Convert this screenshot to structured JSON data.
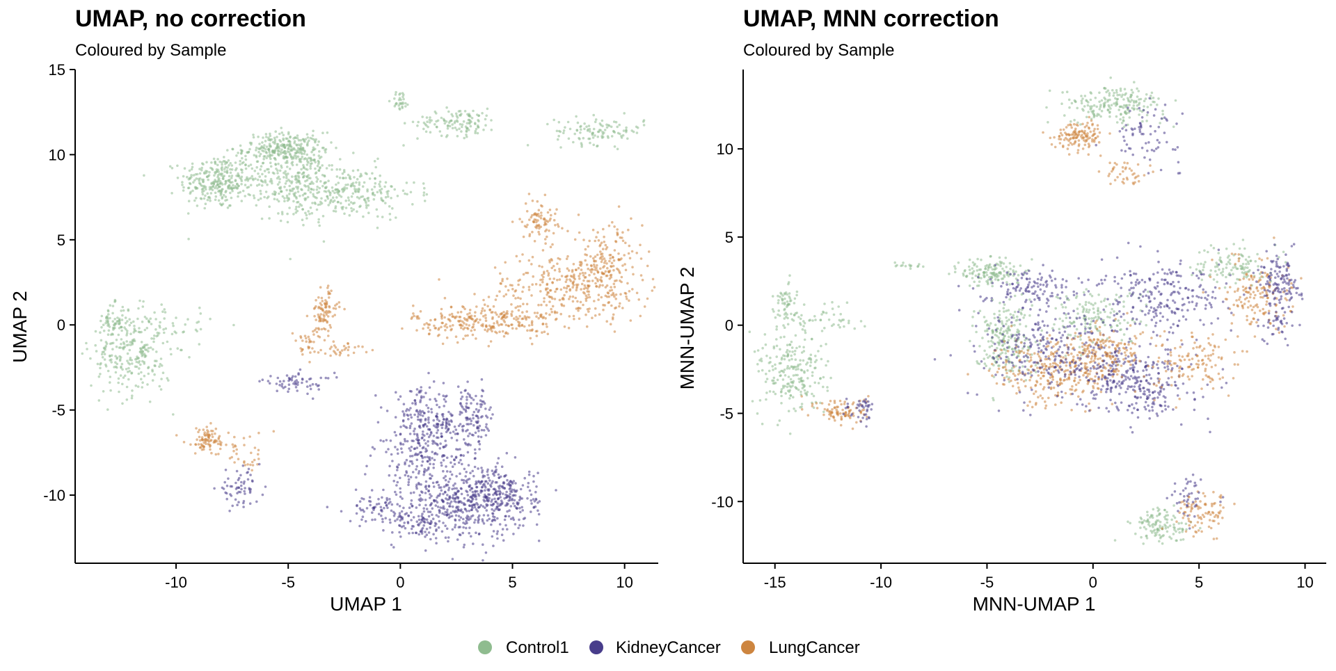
{
  "colors": {
    "Control1": "#8fbc8f",
    "KidneyCancer": "#483d8b",
    "LungCancer": "#cd853f"
  },
  "legend": {
    "placement": "bottom",
    "items": [
      "Control1",
      "KidneyCancer",
      "LungCancer"
    ]
  },
  "chart_data": [
    {
      "type": "scatter",
      "title": "UMAP, no correction",
      "subtitle": "Coloured by Sample",
      "xlabel": "UMAP 1",
      "ylabel": "UMAP 2",
      "xlim": [
        -14.5,
        11.5
      ],
      "ylim": [
        -14,
        15
      ],
      "xticks": [
        -10,
        -5,
        0,
        5,
        10
      ],
      "yticks": [
        15,
        10,
        5,
        0,
        -5,
        -10
      ],
      "grid": false,
      "clusters": [
        {
          "sample": "Control1",
          "cx": -8.2,
          "cy": 8.4,
          "sx": 0.8,
          "sy": 0.8,
          "n": 260
        },
        {
          "sample": "Control1",
          "cx": -5.2,
          "cy": 10.3,
          "sx": 0.9,
          "sy": 0.5,
          "n": 260
        },
        {
          "sample": "Control1",
          "cx": -4.5,
          "cy": 8.5,
          "sx": 0.8,
          "sy": 1.2,
          "n": 220
        },
        {
          "sample": "Control1",
          "cx": -2.5,
          "cy": 7.8,
          "sx": 1.6,
          "sy": 0.8,
          "n": 260
        },
        {
          "sample": "Control1",
          "cx": -7.0,
          "cy": 8.5,
          "sx": 1.2,
          "sy": 0.5,
          "n": 60
        },
        {
          "sample": "Control1",
          "cx": 0.0,
          "cy": 13.2,
          "sx": 0.2,
          "sy": 0.3,
          "n": 30
        },
        {
          "sample": "Control1",
          "cx": 2.6,
          "cy": 11.9,
          "sx": 0.9,
          "sy": 0.4,
          "n": 120
        },
        {
          "sample": "Control1",
          "cx": 8.9,
          "cy": 11.4,
          "sx": 1.0,
          "sy": 0.4,
          "n": 110
        },
        {
          "sample": "Control1",
          "cx": -12.8,
          "cy": 0.2,
          "sx": 0.4,
          "sy": 0.5,
          "n": 60
        },
        {
          "sample": "Control1",
          "cx": -12.0,
          "cy": -1.8,
          "sx": 0.9,
          "sy": 1.2,
          "n": 240
        },
        {
          "sample": "Control1",
          "cx": -10.5,
          "cy": 0.0,
          "sx": 1.2,
          "sy": 0.6,
          "n": 50
        },
        {
          "sample": "LungCancer",
          "cx": 6.2,
          "cy": 6.2,
          "sx": 0.4,
          "sy": 0.6,
          "n": 80
        },
        {
          "sample": "LungCancer",
          "cx": 3.8,
          "cy": 0.2,
          "sx": 1.6,
          "sy": 0.5,
          "n": 260
        },
        {
          "sample": "LungCancer",
          "cx": 7.5,
          "cy": 2.2,
          "sx": 1.8,
          "sy": 1.0,
          "n": 300
        },
        {
          "sample": "LungCancer",
          "cx": 9.2,
          "cy": 3.6,
          "sx": 0.8,
          "sy": 1.2,
          "n": 160
        },
        {
          "sample": "LungCancer",
          "cx": -3.4,
          "cy": 0.8,
          "sx": 0.3,
          "sy": 0.7,
          "n": 90
        },
        {
          "sample": "LungCancer",
          "cx": -4.2,
          "cy": -1.2,
          "sx": 0.3,
          "sy": 0.4,
          "n": 30
        },
        {
          "sample": "LungCancer",
          "cx": -2.5,
          "cy": -1.4,
          "sx": 0.6,
          "sy": 0.2,
          "n": 30
        },
        {
          "sample": "LungCancer",
          "cx": -8.6,
          "cy": -6.8,
          "sx": 0.5,
          "sy": 0.4,
          "n": 90
        },
        {
          "sample": "LungCancer",
          "cx": -6.8,
          "cy": -7.6,
          "sx": 0.6,
          "sy": 0.6,
          "n": 30
        },
        {
          "sample": "KidneyCancer",
          "cx": -4.6,
          "cy": -3.4,
          "sx": 0.8,
          "sy": 0.3,
          "n": 60
        },
        {
          "sample": "KidneyCancer",
          "cx": -7.2,
          "cy": -9.6,
          "sx": 0.5,
          "sy": 0.5,
          "n": 60
        },
        {
          "sample": "KidneyCancer",
          "cx": 1.0,
          "cy": -5.8,
          "sx": 0.7,
          "sy": 1.0,
          "n": 180
        },
        {
          "sample": "KidneyCancer",
          "cx": 3.1,
          "cy": -5.5,
          "sx": 0.6,
          "sy": 0.9,
          "n": 140
        },
        {
          "sample": "KidneyCancer",
          "cx": 2.8,
          "cy": -10.6,
          "sx": 1.3,
          "sy": 1.0,
          "n": 380
        },
        {
          "sample": "KidneyCancer",
          "cx": 4.5,
          "cy": -10.0,
          "sx": 0.8,
          "sy": 0.8,
          "n": 200
        },
        {
          "sample": "KidneyCancer",
          "cx": 1.2,
          "cy": -8.2,
          "sx": 1.2,
          "sy": 1.2,
          "n": 200
        },
        {
          "sample": "KidneyCancer",
          "cx": -0.8,
          "cy": -10.8,
          "sx": 0.8,
          "sy": 0.4,
          "n": 70
        },
        {
          "sample": "KidneyCancer",
          "cx": 0.8,
          "cy": -11.8,
          "sx": 0.6,
          "sy": 0.4,
          "n": 60
        }
      ]
    },
    {
      "type": "scatter",
      "title": "UMAP, MNN correction",
      "subtitle": "Coloured by Sample",
      "xlabel": "MNN-UMAP 1",
      "ylabel": "MNN-UMAP 2",
      "xlim": [
        -16.5,
        11
      ],
      "ylim": [
        -13.5,
        14.5
      ],
      "xticks": [
        -15,
        -10,
        -5,
        0,
        5,
        10
      ],
      "yticks": [
        10,
        5,
        0,
        -5,
        -10
      ],
      "grid": false,
      "clusters": [
        {
          "sample": "Control1",
          "cx": 1.0,
          "cy": 12.5,
          "sx": 1.2,
          "sy": 0.5,
          "n": 200
        },
        {
          "sample": "LungCancer",
          "cx": -0.6,
          "cy": 10.8,
          "sx": 0.6,
          "sy": 0.4,
          "n": 130
        },
        {
          "sample": "KidneyCancer",
          "cx": 2.5,
          "cy": 10.8,
          "sx": 0.8,
          "sy": 0.8,
          "n": 70
        },
        {
          "sample": "LungCancer",
          "cx": 1.6,
          "cy": 8.6,
          "sx": 0.5,
          "sy": 0.4,
          "n": 40
        },
        {
          "sample": "Control1",
          "cx": -14.6,
          "cy": 1.2,
          "sx": 0.3,
          "sy": 0.7,
          "n": 60
        },
        {
          "sample": "Control1",
          "cx": -14.2,
          "cy": -2.8,
          "sx": 0.8,
          "sy": 1.2,
          "n": 220
        },
        {
          "sample": "Control1",
          "cx": -12.5,
          "cy": 0.4,
          "sx": 1.0,
          "sy": 0.6,
          "n": 50
        },
        {
          "sample": "LungCancer",
          "cx": -11.8,
          "cy": -4.9,
          "sx": 0.6,
          "sy": 0.4,
          "n": 90
        },
        {
          "sample": "KidneyCancer",
          "cx": -10.9,
          "cy": -4.8,
          "sx": 0.4,
          "sy": 0.4,
          "n": 40
        },
        {
          "sample": "Control1",
          "cx": -8.8,
          "cy": 3.4,
          "sx": 0.4,
          "sy": 0.1,
          "n": 15
        },
        {
          "sample": "Control1",
          "cx": -4.8,
          "cy": 3.0,
          "sx": 0.7,
          "sy": 0.4,
          "n": 140
        },
        {
          "sample": "KidneyCancer",
          "cx": -3.0,
          "cy": 2.2,
          "sx": 1.2,
          "sy": 0.5,
          "n": 120
        },
        {
          "sample": "Control1",
          "cx": -4.2,
          "cy": -0.8,
          "sx": 0.7,
          "sy": 1.1,
          "n": 220
        },
        {
          "sample": "Control1",
          "cx": 0.0,
          "cy": 0.5,
          "sx": 1.2,
          "sy": 0.8,
          "n": 150
        },
        {
          "sample": "LungCancer",
          "cx": -1.8,
          "cy": -2.6,
          "sx": 1.4,
          "sy": 1.0,
          "n": 300
        },
        {
          "sample": "KidneyCancer",
          "cx": -1.5,
          "cy": -1.5,
          "sx": 2.0,
          "sy": 1.3,
          "n": 300
        },
        {
          "sample": "KidneyCancer",
          "cx": 2.0,
          "cy": -3.2,
          "sx": 1.3,
          "sy": 1.0,
          "n": 280
        },
        {
          "sample": "KidneyCancer",
          "cx": 3.5,
          "cy": 1.5,
          "sx": 1.5,
          "sy": 1.0,
          "n": 220
        },
        {
          "sample": "LungCancer",
          "cx": 4.8,
          "cy": -2.2,
          "sx": 1.0,
          "sy": 0.8,
          "n": 120
        },
        {
          "sample": "Control1",
          "cx": 6.5,
          "cy": 3.5,
          "sx": 0.8,
          "sy": 0.6,
          "n": 110
        },
        {
          "sample": "LungCancer",
          "cx": 7.8,
          "cy": 1.8,
          "sx": 0.8,
          "sy": 1.0,
          "n": 150
        },
        {
          "sample": "KidneyCancer",
          "cx": 8.8,
          "cy": 2.5,
          "sx": 0.5,
          "sy": 0.8,
          "n": 120
        },
        {
          "sample": "KidneyCancer",
          "cx": 8.7,
          "cy": 0.2,
          "sx": 0.4,
          "sy": 0.6,
          "n": 40
        },
        {
          "sample": "LungCancer",
          "cx": 0.8,
          "cy": -1.5,
          "sx": 1.0,
          "sy": 0.8,
          "n": 150
        },
        {
          "sample": "Control1",
          "cx": 3.2,
          "cy": -11.4,
          "sx": 0.7,
          "sy": 0.5,
          "n": 120
        },
        {
          "sample": "LungCancer",
          "cx": 5.2,
          "cy": -10.6,
          "sx": 0.6,
          "sy": 0.6,
          "n": 90
        },
        {
          "sample": "KidneyCancer",
          "cx": 4.6,
          "cy": -9.8,
          "sx": 0.5,
          "sy": 0.6,
          "n": 40
        }
      ]
    }
  ]
}
